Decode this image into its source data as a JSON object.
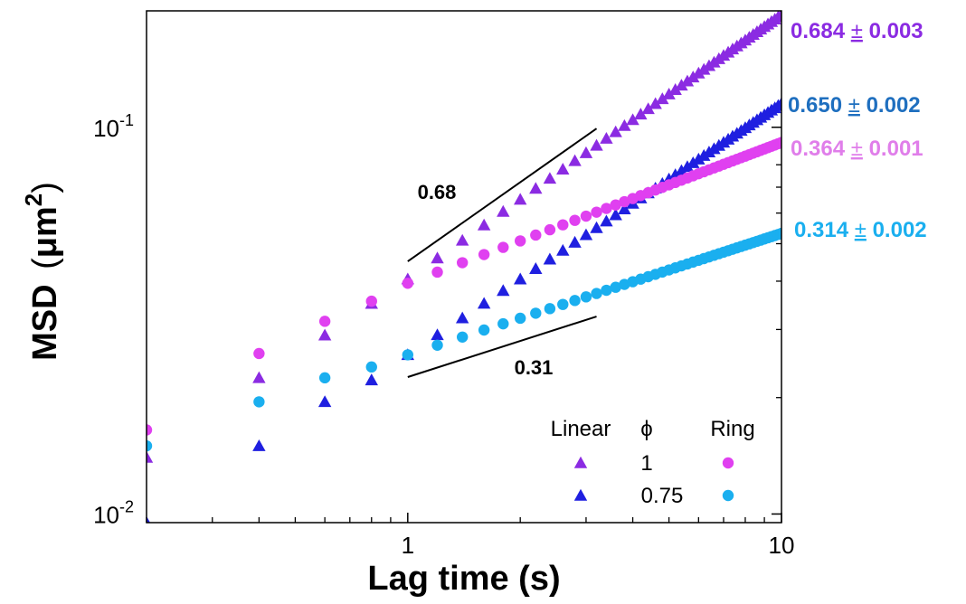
{
  "chart_data": {
    "type": "scatter",
    "xscale": "log",
    "yscale": "log",
    "xlim": [
      0.2,
      10
    ],
    "ylim": [
      0.0095,
      0.2
    ],
    "xlabel": "Lag time (s)",
    "ylabel_main": "MSD",
    "ylabel_unit": "μm",
    "ylabel_exp": "2",
    "x_ticks": [
      {
        "value": 1,
        "label": "1"
      },
      {
        "value": 10,
        "label": "10"
      }
    ],
    "y_ticks": [
      {
        "value": 0.01,
        "base": "10",
        "exp": "-2"
      },
      {
        "value": 0.1,
        "base": "10",
        "exp": "-1"
      }
    ],
    "series": [
      {
        "name": "Linear φ=1",
        "marker": "triangle",
        "color": "#8B2BE2",
        "x0": 0.2,
        "y0": 0.014,
        "dt": 0.2,
        "slope_after": 0.684,
        "early": [
          0.014,
          0.0225,
          0.029,
          0.035,
          0.0405
        ],
        "n": 50
      },
      {
        "name": "Linear φ=0.75",
        "marker": "triangle",
        "color": "#1F1FE0",
        "x0": 0.2,
        "y0": 0.0095,
        "dt": 0.2,
        "slope_after": 0.65,
        "early": [
          0.0095,
          0.015,
          0.0195,
          0.0222,
          0.0258
        ],
        "n": 50
      },
      {
        "name": "Ring φ=1",
        "marker": "circle",
        "color": "#E040F0",
        "x0": 0.2,
        "y0": 0.0165,
        "dt": 0.2,
        "slope_after": 0.364,
        "early": [
          0.0165,
          0.026,
          0.0315,
          0.0355,
          0.0395
        ],
        "n": 50
      },
      {
        "name": "Ring φ=0.75",
        "marker": "circle",
        "color": "#1AAFEF",
        "x0": 0.2,
        "y0": 0.015,
        "dt": 0.2,
        "slope_after": 0.314,
        "early": [
          0.015,
          0.0195,
          0.0225,
          0.024,
          0.0258
        ],
        "n": 50
      }
    ],
    "slope_guides": [
      {
        "label": "0.68",
        "slope": 0.68,
        "x": [
          1,
          3.2
        ],
        "y_start": 0.045
      },
      {
        "label": "0.31",
        "slope": 0.31,
        "x": [
          1,
          3.2
        ],
        "y_start": 0.0226
      }
    ],
    "exponent_labels": [
      {
        "value": "0.684",
        "pm": "±",
        "err": "0.003",
        "color": "#8B2BE2"
      },
      {
        "value": "0.650",
        "pm": "±",
        "err": "0.002",
        "color": "#1F6FBF"
      },
      {
        "value": "0.364",
        "pm": "±",
        "err": "0.001",
        "color": "#E07EEA"
      },
      {
        "value": "0.314",
        "pm": "±",
        "err": "0.002",
        "color": "#1AAFEF"
      }
    ],
    "legend": {
      "position": "bottom-right",
      "header_linear": "Linear",
      "header_phi": "ϕ",
      "header_ring": "Ring",
      "rows": [
        {
          "phi": "1",
          "linear_color": "#8B2BE2",
          "ring_color": "#E040F0"
        },
        {
          "phi": "0.75",
          "linear_color": "#1F1FE0",
          "ring_color": "#1AAFEF"
        }
      ]
    }
  }
}
